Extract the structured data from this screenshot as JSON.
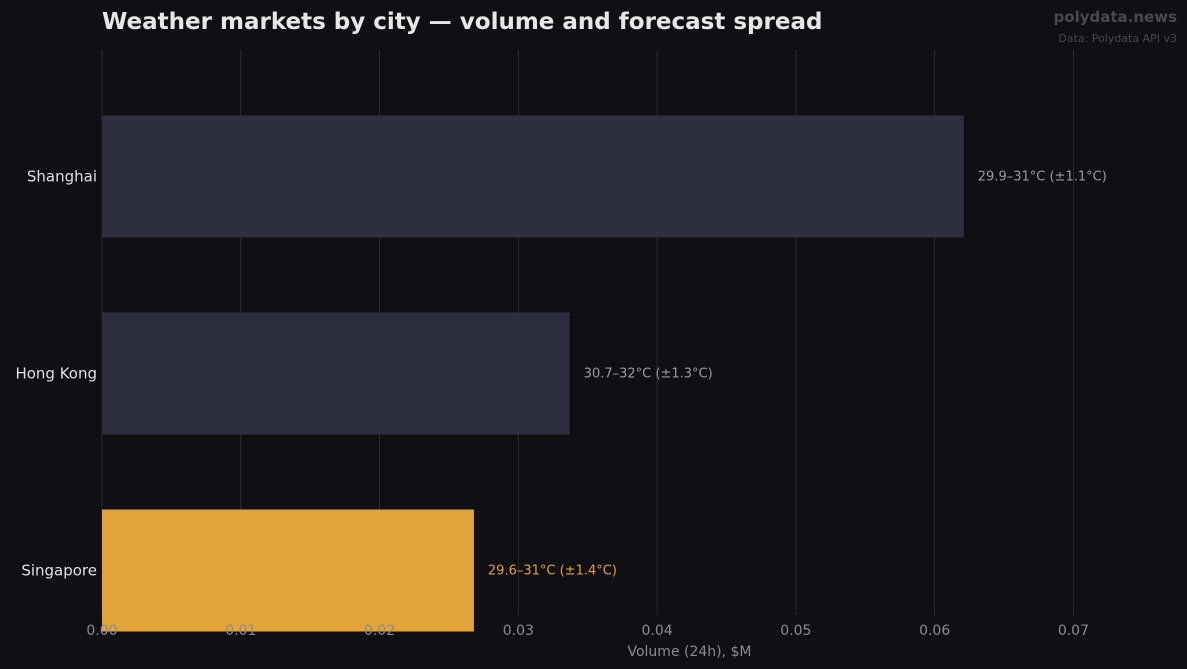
{
  "header": {
    "title": "Weather markets by city — volume and forecast spread",
    "brand": "polydata.news",
    "source": "Data: Polydata API v3"
  },
  "colors": {
    "background": "#100f13",
    "bar_default": "#2e2f3e",
    "bar_highlight": "#e2a338",
    "annotation_default": "#9a9aa2",
    "annotation_highlight": "#e2a338",
    "category_label": "#e0e0e4",
    "tick_label": "#8a8a92",
    "grid": "#2a2a30"
  },
  "chart_data": {
    "type": "bar",
    "orientation": "horizontal",
    "title": "Weather markets by city — volume and forecast spread",
    "xlabel": "Volume (24h), $M",
    "ylabel": "",
    "xlim": [
      0,
      0.0735
    ],
    "xticks": [
      0.0,
      0.01,
      0.02,
      0.03,
      0.04,
      0.05,
      0.06,
      0.07
    ],
    "xtick_labels": [
      "0.00",
      "0.01",
      "0.02",
      "0.03",
      "0.04",
      "0.05",
      "0.06",
      "0.07"
    ],
    "grid": "vertical",
    "categories": [
      "Shanghai",
      "Hong Kong",
      "Singapore"
    ],
    "values": [
      0.0621,
      0.0337,
      0.0268
    ],
    "annotations": [
      "29.9–31°C (±1.1°C)",
      "30.7–32°C (±1.3°C)",
      "29.6–31°C (±1.4°C)"
    ],
    "highlighted": [
      "Singapore"
    ]
  }
}
